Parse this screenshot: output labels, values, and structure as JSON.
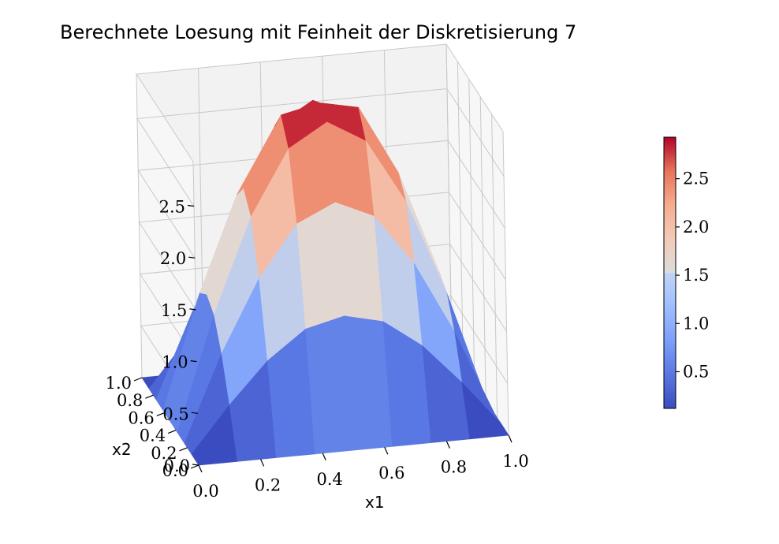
{
  "chart_data": {
    "type": "surface3d",
    "title": "Berechnete Loesung mit Feinheit der Diskretisierung 7",
    "xlabel": "x1",
    "ylabel": "x2",
    "zlabel": "",
    "xlim": [
      0.0,
      1.0
    ],
    "ylim": [
      0.0,
      1.0
    ],
    "zlim": [
      0.0,
      2.93
    ],
    "x_ticks": [
      "0.0",
      "0.2",
      "0.4",
      "0.6",
      "0.8",
      "1.0"
    ],
    "y_ticks": [
      "0.0",
      "0.2",
      "0.4",
      "0.6",
      "0.8",
      "1.0"
    ],
    "z_ticks": [
      "0.0",
      "0.5",
      "1.0",
      "1.5",
      "2.0",
      "2.5"
    ],
    "colormap": "coolwarm",
    "colorbar": {
      "min": 0.12,
      "max": 2.93,
      "ticks": [
        "0.5",
        "1.0",
        "1.5",
        "2.0",
        "2.5"
      ]
    },
    "grid_x": [
      0.0,
      0.125,
      0.25,
      0.375,
      0.5,
      0.625,
      0.75,
      0.875,
      1.0
    ],
    "grid_y": [
      0.0,
      0.125,
      0.25,
      0.375,
      0.5,
      0.625,
      0.75,
      0.875,
      1.0
    ],
    "z": [
      [
        0,
        0,
        0,
        0,
        0,
        0,
        0,
        0,
        0
      ],
      [
        0,
        0.44,
        0.83,
        1.1,
        1.19,
        1.1,
        0.83,
        0.44,
        0
      ],
      [
        0,
        0.83,
        1.52,
        2.01,
        2.18,
        2.01,
        1.52,
        0.83,
        0
      ],
      [
        0,
        1.1,
        2.01,
        2.63,
        2.85,
        2.63,
        2.01,
        1.1,
        0
      ],
      [
        0,
        1.19,
        2.18,
        2.85,
        2.93,
        2.85,
        2.18,
        1.19,
        0
      ],
      [
        0,
        1.1,
        2.01,
        2.63,
        2.85,
        2.63,
        2.01,
        1.1,
        0
      ],
      [
        0,
        0.83,
        1.52,
        2.01,
        2.18,
        2.01,
        1.52,
        0.83,
        0
      ],
      [
        0,
        0.44,
        0.83,
        1.1,
        1.19,
        1.1,
        0.83,
        0.44,
        0
      ],
      [
        0,
        0,
        0,
        0,
        0,
        0,
        0,
        0,
        0
      ]
    ],
    "grid": true,
    "legend": "colorbar-right"
  }
}
